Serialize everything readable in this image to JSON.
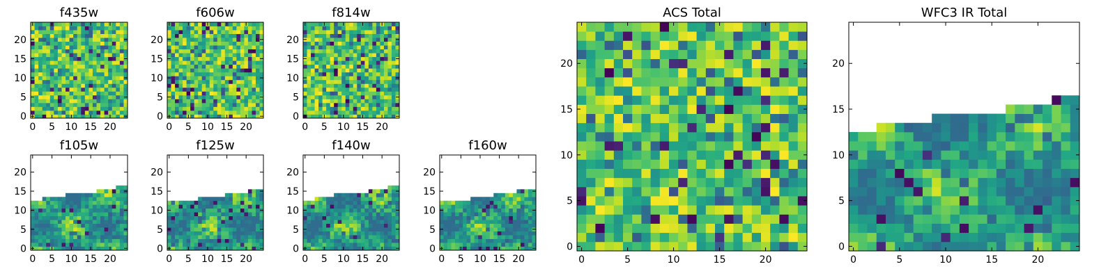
{
  "chart_data": [
    {
      "type": "heatmap",
      "title": "f435w",
      "xticks": [
        0,
        5,
        10,
        15,
        20
      ],
      "yticks": [
        0,
        5,
        10,
        15,
        20
      ],
      "grid_shape": [
        25,
        25
      ],
      "xlim": [
        -0.5,
        24.5
      ],
      "ylim": [
        -0.5,
        24.5
      ],
      "colormap": "viridis",
      "coverage": "full",
      "data_top_profile": null,
      "grid": false
    },
    {
      "type": "heatmap",
      "title": "f606w",
      "xticks": [
        0,
        5,
        10,
        15,
        20
      ],
      "yticks": [
        0,
        5,
        10,
        15,
        20
      ],
      "grid_shape": [
        25,
        25
      ],
      "xlim": [
        -0.5,
        24.5
      ],
      "ylim": [
        -0.5,
        24.5
      ],
      "colormap": "viridis",
      "coverage": "full",
      "data_top_profile": null,
      "grid": false
    },
    {
      "type": "heatmap",
      "title": "f814w",
      "xticks": [
        0,
        5,
        10,
        15,
        20
      ],
      "yticks": [
        0,
        5,
        10,
        15,
        20
      ],
      "grid_shape": [
        25,
        25
      ],
      "xlim": [
        -0.5,
        24.5
      ],
      "ylim": [
        -0.5,
        24.5
      ],
      "colormap": "viridis",
      "coverage": "full",
      "data_top_profile": null,
      "grid": false
    },
    {
      "type": "heatmap",
      "title": "f105w",
      "xticks": [
        0,
        5,
        10,
        15,
        20
      ],
      "yticks": [
        0,
        5,
        10,
        15,
        20
      ],
      "grid_shape": [
        25,
        25
      ],
      "xlim": [
        -0.5,
        24.5
      ],
      "ylim": [
        -0.5,
        24.5
      ],
      "colormap": "viridis",
      "coverage": "partial",
      "data_top_profile": [
        12,
        12,
        12,
        13,
        13,
        13,
        13,
        13,
        13,
        14,
        14,
        14,
        14,
        14,
        14,
        14,
        14,
        15,
        15,
        15,
        15,
        15,
        16,
        16,
        16
      ],
      "grid": false
    },
    {
      "type": "heatmap",
      "title": "f125w",
      "xticks": [
        0,
        5,
        10,
        15,
        20
      ],
      "yticks": [
        0,
        5,
        10,
        15,
        20
      ],
      "grid_shape": [
        25,
        25
      ],
      "xlim": [
        -0.5,
        24.5
      ],
      "ylim": [
        -0.5,
        24.5
      ],
      "colormap": "viridis",
      "coverage": "partial",
      "data_top_profile": [
        12,
        12,
        12,
        12,
        12,
        12,
        12,
        12,
        13,
        13,
        13,
        13,
        13,
        13,
        13,
        14,
        14,
        14,
        14,
        14,
        14,
        15,
        15,
        15,
        15
      ],
      "grid": false
    },
    {
      "type": "heatmap",
      "title": "f140w",
      "xticks": [
        0,
        5,
        10,
        15,
        20
      ],
      "yticks": [
        0,
        5,
        10,
        15,
        20
      ],
      "grid_shape": [
        25,
        25
      ],
      "xlim": [
        -0.5,
        24.5
      ],
      "ylim": [
        -0.5,
        24.5
      ],
      "colormap": "viridis",
      "coverage": "partial",
      "data_top_profile": [
        12,
        12,
        12,
        13,
        13,
        13,
        13,
        13,
        14,
        14,
        14,
        14,
        14,
        14,
        14,
        14,
        14,
        15,
        15,
        15,
        15,
        15,
        16,
        16,
        16
      ],
      "grid": false
    },
    {
      "type": "heatmap",
      "title": "f160w",
      "xticks": [
        0,
        5,
        10,
        15,
        20
      ],
      "yticks": [
        0,
        5,
        10,
        15,
        20
      ],
      "grid_shape": [
        25,
        25
      ],
      "xlim": [
        -0.5,
        24.5
      ],
      "ylim": [
        -0.5,
        24.5
      ],
      "colormap": "viridis",
      "coverage": "partial",
      "data_top_profile": [
        12,
        12,
        12,
        12,
        12,
        12,
        12,
        12,
        13,
        13,
        13,
        13,
        13,
        13,
        14,
        14,
        14,
        14,
        14,
        14,
        15,
        15,
        15,
        15,
        15
      ],
      "grid": false
    },
    {
      "type": "heatmap",
      "title": "ACS Total",
      "xticks": [
        0,
        5,
        10,
        15,
        20
      ],
      "yticks": [
        0,
        5,
        10,
        15,
        20
      ],
      "grid_shape": [
        25,
        25
      ],
      "xlim": [
        -0.5,
        24.5
      ],
      "ylim": [
        -0.5,
        24.5
      ],
      "colormap": "viridis",
      "coverage": "full",
      "data_top_profile": null,
      "grid": false
    },
    {
      "type": "heatmap",
      "title": "WFC3 IR Total",
      "xticks": [
        0,
        5,
        10,
        15,
        20
      ],
      "yticks": [
        0,
        5,
        10,
        15,
        20
      ],
      "grid_shape": [
        25,
        25
      ],
      "xlim": [
        -0.5,
        24.5
      ],
      "ylim": [
        -0.5,
        24.5
      ],
      "colormap": "viridis",
      "coverage": "partial",
      "data_top_profile": [
        12,
        12,
        12,
        13,
        13,
        13,
        13,
        13,
        13,
        14,
        14,
        14,
        14,
        14,
        14,
        14,
        14,
        15,
        15,
        15,
        15,
        15,
        16,
        16,
        16
      ],
      "grid": false
    }
  ]
}
